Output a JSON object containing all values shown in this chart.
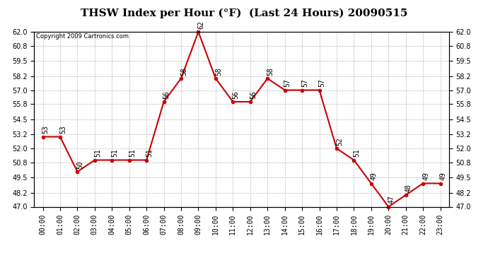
{
  "title": "THSW Index per Hour (°F)  (Last 24 Hours) 20090515",
  "copyright": "Copyright 2009 Cartronics.com",
  "hours": [
    "00:00",
    "01:00",
    "02:00",
    "03:00",
    "04:00",
    "05:00",
    "06:00",
    "07:00",
    "08:00",
    "09:00",
    "10:00",
    "11:00",
    "12:00",
    "13:00",
    "14:00",
    "15:00",
    "16:00",
    "17:00",
    "18:00",
    "19:00",
    "20:00",
    "21:00",
    "22:00",
    "23:00"
  ],
  "values": [
    53,
    53,
    50,
    51,
    51,
    51,
    51,
    56,
    58,
    62,
    58,
    56,
    56,
    58,
    57,
    57,
    57,
    52,
    51,
    49,
    47,
    48,
    49,
    49
  ],
  "ylim_min": 47.0,
  "ylim_max": 62.0,
  "yticks": [
    47.0,
    48.2,
    49.5,
    50.8,
    52.0,
    53.2,
    54.5,
    55.8,
    57.0,
    58.2,
    59.5,
    60.8,
    62.0
  ],
  "line_color": "#cc0000",
  "marker_color": "#cc0000",
  "bg_color": "#ffffff",
  "grid_color": "#bbbbbb",
  "title_fontsize": 11,
  "label_fontsize": 7,
  "tick_fontsize": 7,
  "copyright_fontsize": 6
}
